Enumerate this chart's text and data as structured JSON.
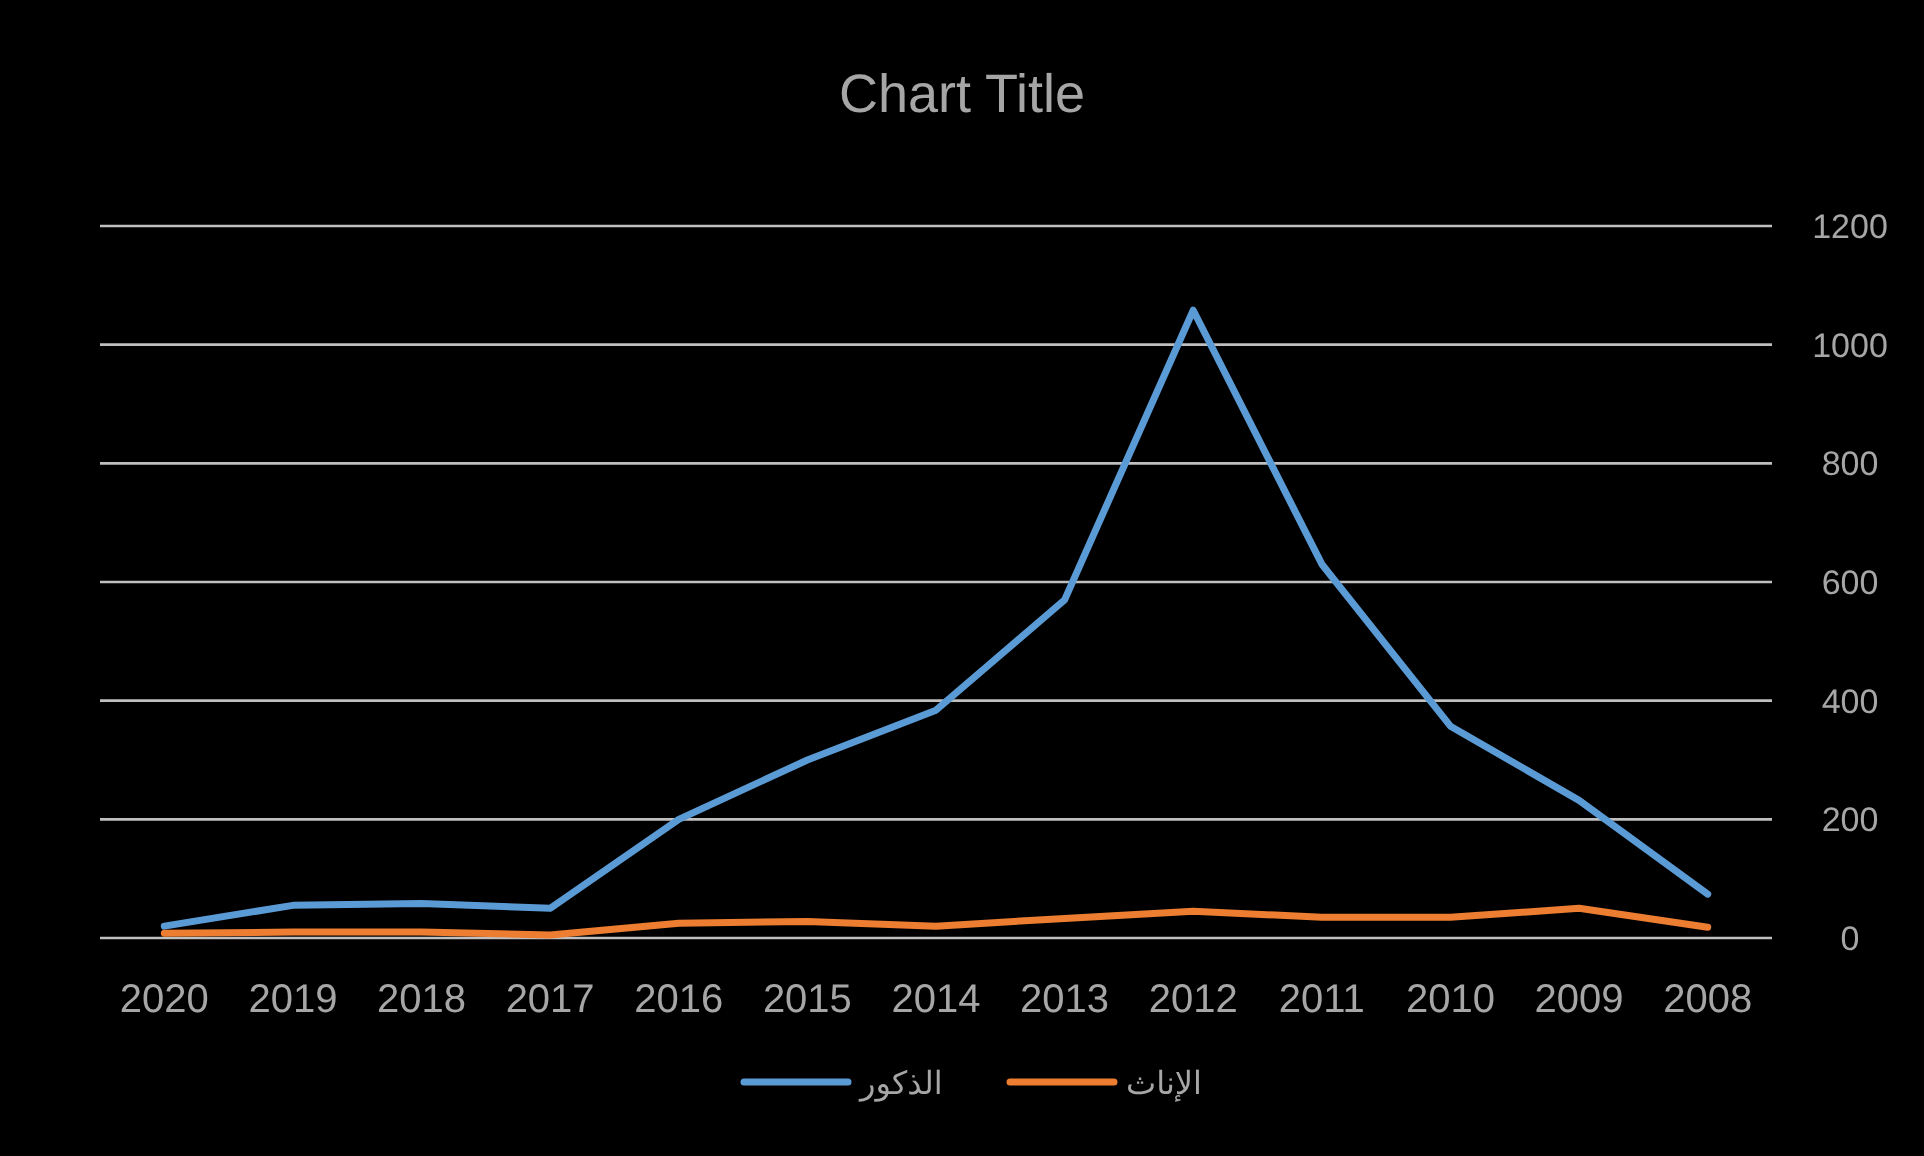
{
  "chart_data": {
    "type": "line",
    "title": "Chart Title",
    "categories": [
      "2020",
      "2019",
      "2018",
      "2017",
      "2016",
      "2015",
      "2014",
      "2013",
      "2012",
      "2011",
      "2010",
      "2009",
      "2008"
    ],
    "series": [
      {
        "name": "الذكور",
        "color": "#5b9bd5",
        "values": [
          20,
          55,
          58,
          50,
          200,
          300,
          384,
          570,
          1058,
          630,
          357,
          232,
          74
        ]
      },
      {
        "name": "الإناث",
        "color": "#ed7d31",
        "values": [
          8,
          10,
          10,
          5,
          25,
          28,
          20,
          33,
          45,
          35,
          35,
          50,
          18
        ]
      }
    ],
    "ylim": [
      0,
      1200
    ],
    "yticks": [
      0,
      200,
      400,
      600,
      800,
      1000,
      1200
    ],
    "grid": "y",
    "legend": "bottom"
  }
}
